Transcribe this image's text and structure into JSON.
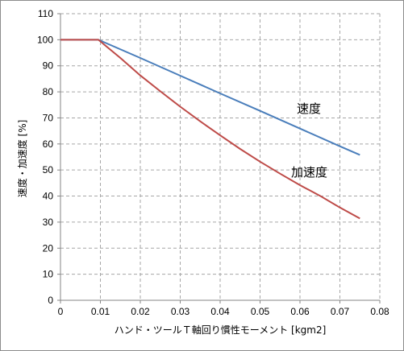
{
  "chart_data": {
    "type": "line",
    "xlabel": "ハンド・ツールＴ軸回り慣性モーメント [kgm2]",
    "ylabel": "速度・加速度 [%]",
    "xlim": [
      0,
      0.08
    ],
    "ylim": [
      0,
      110
    ],
    "x_ticks": [
      "0",
      "0.01",
      "0.02",
      "0.03",
      "0.04",
      "0.05",
      "0.06",
      "0.07",
      "0.08"
    ],
    "y_ticks": [
      "0",
      "10",
      "20",
      "30",
      "40",
      "50",
      "60",
      "70",
      "80",
      "90",
      "100",
      "110"
    ],
    "grid": true,
    "series": [
      {
        "name": "速度",
        "color": "#4a7ebb",
        "x": [
          0,
          0.0095,
          0.02,
          0.03,
          0.04,
          0.05,
          0.06,
          0.07,
          0.075
        ],
        "y": [
          100,
          100,
          93,
          86.2,
          79.4,
          72.7,
          65.9,
          59.1,
          55.8
        ]
      },
      {
        "name": "加速度",
        "color": "#be4b48",
        "x": [
          0,
          0.0095,
          0.015,
          0.02,
          0.025,
          0.03,
          0.035,
          0.04,
          0.045,
          0.05,
          0.055,
          0.06,
          0.065,
          0.07,
          0.075
        ],
        "y": [
          100,
          100,
          93,
          86.3,
          80.2,
          74.3,
          68.7,
          63.3,
          58.1,
          53.2,
          48.6,
          44.2,
          40.1,
          35.6,
          31.4
        ]
      }
    ]
  }
}
